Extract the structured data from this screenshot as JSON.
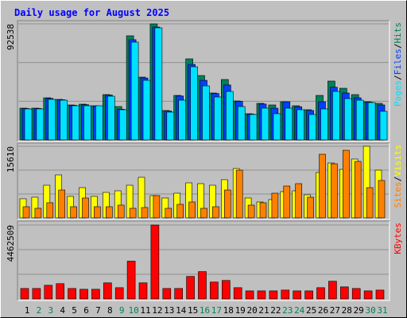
{
  "chart_data": [
    {
      "type": "bar",
      "title": "Daily usage for August 2025",
      "ylim": [
        0,
        92538
      ],
      "yticks": [
        92538
      ],
      "legend_separator": "/",
      "series": [
        {
          "name": "Hits",
          "color": "#00805c",
          "values": [
            25353,
            25353,
            33593,
            32325,
            27888,
            28522,
            27254,
            36128,
            26620,
            83030,
            50071,
            92538,
            23452,
            35494,
            64650,
            51341,
            37396,
            48171,
            31058,
            20916,
            29156,
            27888,
            30424,
            27254,
            24085,
            35494,
            46903,
            41199,
            36128,
            30424,
            29156
          ]
        },
        {
          "name": "Files",
          "color": "#0040ff",
          "values": [
            25000,
            25100,
            33100,
            32000,
            27600,
            28100,
            27000,
            35800,
            24500,
            79900,
            49400,
            90000,
            23100,
            35000,
            60200,
            47500,
            37000,
            43800,
            30800,
            20600,
            28600,
            25300,
            30400,
            26500,
            23500,
            30400,
            42000,
            37400,
            33600,
            30100,
            27900
          ]
        },
        {
          "name": "Pages",
          "color": "#00e0ff",
          "values": [
            24718,
            24718,
            32324,
            31690,
            27253,
            27253,
            27253,
            34859,
            24084,
            77957,
            47535,
            89366,
            22183,
            31690,
            58310,
            43098,
            34225,
            38662,
            26620,
            20282,
            25352,
            20915,
            25352,
            24084,
            20282,
            24718,
            38662,
            32958,
            31690,
            29789,
            22817
          ]
        }
      ]
    },
    {
      "type": "bar",
      "ylim": [
        0,
        15610
      ],
      "yticks": [
        15610
      ],
      "legend_separator": "/",
      "series": [
        {
          "name": "Visits",
          "color": "#ffff00",
          "values": [
            4162,
            4508,
            7109,
            9364,
            4682,
            6589,
            4682,
            5549,
            5896,
            7109,
            8843,
            4855,
            4335,
            5375,
            7630,
            7456,
            7109,
            8323,
            10751,
            4335,
            3468,
            3988,
            5722,
            5896,
            5029,
            9884,
            11965,
            10577,
            12832,
            15610,
            10404
          ]
        },
        {
          "name": "Sites",
          "color": "#ff8000",
          "values": [
            2428,
            2081,
            3295,
            6069,
            2428,
            4335,
            2428,
            2428,
            2774,
            2081,
            2254,
            4855,
            2081,
            2948,
            3468,
            2081,
            2428,
            6069,
            10404,
            2774,
            3295,
            5375,
            6936,
            7456,
            4508,
            13872,
            11791,
            14739,
            12311,
            6589,
            8150
          ]
        }
      ]
    },
    {
      "type": "bar",
      "ylim": [
        0,
        4462509
      ],
      "yticks": [
        4462509
      ],
      "categories": [
        "1",
        "2",
        "3",
        "4",
        "5",
        "6",
        "7",
        "8",
        "9",
        "10",
        "11",
        "12",
        "13",
        "14",
        "15",
        "16",
        "17",
        "18",
        "19",
        "20",
        "21",
        "22",
        "23",
        "24",
        "25",
        "26",
        "27",
        "28",
        "29",
        "30",
        "31"
      ],
      "weekend_categories": [
        "2",
        "3",
        "9",
        "10",
        "16",
        "17",
        "23",
        "24",
        "30",
        "31"
      ],
      "weekday_label_color": "#000000",
      "weekend_label_color": "#00805c",
      "series": [
        {
          "name": "KBytes",
          "color": "#ff0000",
          "values": [
            630572,
            630572,
            824594,
            921605,
            630572,
            582066,
            582066,
            970110,
            679077,
            2279759,
            970110,
            4462509,
            630572,
            630572,
            1358154,
            1649187,
            1018616,
            1115627,
            679077,
            485055,
            485055,
            485055,
            533561,
            485055,
            485055,
            679077,
            1067121,
            727583,
            630572,
            485055,
            533561
          ]
        }
      ]
    }
  ]
}
